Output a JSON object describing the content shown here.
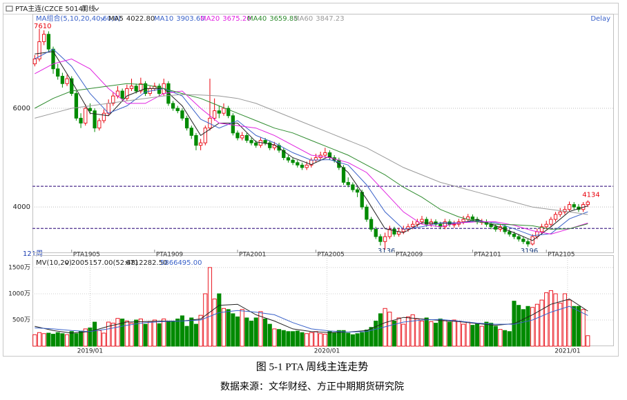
{
  "header": {
    "symbol": "PTA主连(CZCE 5014)",
    "period": "周线"
  },
  "chart_data": {
    "type": "candlestick",
    "indicator_label": "MA组合(5,10,20,40,60,0)",
    "delay": "Delay",
    "bar_count_label": "121周",
    "up_color": "#e8000b",
    "down_color": "#008a00",
    "xlim": [
      -0.5,
      125.5
    ],
    "ylim": [
      3080,
      7915
    ],
    "yticks": [
      4000,
      6000
    ],
    "grid": true,
    "open": [
      6900,
      7000,
      7350,
      7500,
      7200,
      6800,
      6650,
      6500,
      6600,
      6300,
      5800,
      5700,
      6000,
      5950,
      5600,
      5750,
      5900,
      6100,
      6250,
      6350,
      6200,
      6400,
      6450,
      6350,
      6500,
      6300,
      6400,
      6450,
      6300,
      6500,
      6100,
      6000,
      5950,
      5800,
      5600,
      5450,
      5250,
      5300,
      5600,
      5800,
      5950,
      5900,
      6000,
      5850,
      5500,
      5400,
      5450,
      5350,
      5300,
      5250,
      5350,
      5300,
      5200,
      5250,
      5150,
      5000,
      4950,
      4900,
      4850,
      4800,
      4850,
      4950,
      5000,
      5050,
      5100,
      5000,
      4950,
      4800,
      4500,
      4450,
      4350,
      4300,
      4000,
      3750,
      3550,
      3400,
      3300,
      3400,
      3550,
      3450,
      3500,
      3550,
      3600,
      3650,
      3700,
      3750,
      3650,
      3700,
      3650,
      3600,
      3700,
      3650,
      3650,
      3700,
      3750,
      3800,
      3750,
      3700,
      3700,
      3650,
      3600,
      3550,
      3600,
      3500,
      3450,
      3400,
      3350,
      3300,
      3250,
      3400,
      3500,
      3600,
      3650,
      3750,
      3850,
      3900,
      3950,
      4050,
      4000,
      3950,
      4050
    ],
    "high": [
      7080,
      7610,
      7580,
      7560,
      7250,
      6900,
      6720,
      6680,
      6650,
      6350,
      5900,
      6080,
      6100,
      6000,
      5800,
      5980,
      6180,
      6320,
      6450,
      6400,
      6480,
      6600,
      6500,
      6620,
      6550,
      6450,
      6520,
      6500,
      6600,
      6550,
      6150,
      6050,
      6000,
      5850,
      5650,
      5500,
      5380,
      5650,
      6600,
      6200,
      6050,
      6100,
      6050,
      5900,
      5550,
      5520,
      5500,
      5400,
      5350,
      5420,
      5400,
      5350,
      5320,
      5300,
      5200,
      5050,
      5000,
      4950,
      4900,
      4920,
      5000,
      5080,
      5120,
      5200,
      5150,
      5050,
      5000,
      4850,
      4600,
      4500,
      4400,
      4350,
      4050,
      3800,
      3600,
      3450,
      3480,
      3620,
      3600,
      3580,
      3620,
      3660,
      3720,
      3760,
      3820,
      3800,
      3760,
      3750,
      3700,
      3760,
      3750,
      3720,
      3760,
      3820,
      3860,
      3850,
      3800,
      3760,
      3750,
      3700,
      3650,
      3660,
      3650,
      3550,
      3500,
      3450,
      3400,
      3350,
      3450,
      3560,
      3660,
      3720,
      3800,
      3900,
      3980,
      4020,
      4110,
      4100,
      4060,
      4100,
      4134
    ],
    "low": [
      6850,
      6950,
      7280,
      7150,
      6700,
      6580,
      6420,
      6450,
      6250,
      5750,
      5600,
      5650,
      5880,
      5520,
      5550,
      5700,
      5850,
      6050,
      6200,
      6150,
      6150,
      6350,
      6300,
      6300,
      6250,
      6250,
      6350,
      6250,
      6250,
      6050,
      5950,
      5900,
      5750,
      5550,
      5380,
      5150,
      5150,
      5250,
      5550,
      5750,
      5800,
      5850,
      5800,
      5450,
      5350,
      5350,
      5300,
      5250,
      5200,
      5200,
      5250,
      5150,
      5150,
      5100,
      4950,
      4900,
      4850,
      4800,
      4750,
      4750,
      4800,
      4900,
      4950,
      5000,
      4950,
      4900,
      4750,
      4450,
      4400,
      4300,
      4200,
      3950,
      3700,
      3500,
      3350,
      3220,
      3136,
      3350,
      3400,
      3400,
      3450,
      3500,
      3550,
      3600,
      3650,
      3600,
      3600,
      3600,
      3550,
      3550,
      3600,
      3580,
      3600,
      3650,
      3700,
      3700,
      3650,
      3640,
      3600,
      3550,
      3500,
      3500,
      3450,
      3400,
      3350,
      3300,
      3250,
      3196,
      3220,
      3350,
      3450,
      3550,
      3600,
      3700,
      3800,
      3850,
      3900,
      3950,
      3900,
      3900,
      4000
    ],
    "close": [
      7000,
      7350,
      7500,
      7200,
      6800,
      6650,
      6500,
      6600,
      6300,
      5800,
      5700,
      6000,
      5950,
      5600,
      5750,
      5900,
      6100,
      6250,
      6350,
      6200,
      6400,
      6450,
      6350,
      6500,
      6300,
      6400,
      6450,
      6300,
      6500,
      6100,
      6000,
      5950,
      5800,
      5600,
      5450,
      5250,
      5300,
      5600,
      5800,
      5950,
      5900,
      6000,
      5850,
      5500,
      5400,
      5450,
      5350,
      5300,
      5250,
      5350,
      5300,
      5200,
      5250,
      5150,
      5000,
      4950,
      4900,
      4850,
      4800,
      4850,
      4950,
      5000,
      5050,
      5100,
      5000,
      4950,
      4800,
      4500,
      4450,
      4350,
      4300,
      4000,
      3750,
      3550,
      3400,
      3300,
      3400,
      3550,
      3450,
      3500,
      3550,
      3600,
      3650,
      3700,
      3750,
      3650,
      3700,
      3650,
      3600,
      3700,
      3650,
      3650,
      3700,
      3750,
      3800,
      3750,
      3700,
      3700,
      3650,
      3600,
      3550,
      3600,
      3500,
      3450,
      3400,
      3350,
      3300,
      3250,
      3400,
      3500,
      3600,
      3650,
      3750,
      3850,
      3900,
      3950,
      4050,
      4000,
      3950,
      4050,
      4100
    ],
    "ma_x": [
      0,
      4,
      8,
      12,
      16,
      20,
      24,
      28,
      32,
      36,
      40,
      44,
      48,
      52,
      56,
      60,
      64,
      68,
      72,
      76,
      80,
      84,
      88,
      92,
      96,
      100,
      104,
      108,
      112,
      116,
      120
    ],
    "series": [
      {
        "name": "MA5",
        "label": "4022.80",
        "color": "#222222",
        "values": [
          7100,
          7150,
          6550,
          5900,
          5850,
          6250,
          6400,
          6400,
          6050,
          5450,
          5700,
          5700,
          5320,
          5260,
          5000,
          4860,
          5030,
          4700,
          4160,
          3560,
          3480,
          3680,
          3670,
          3670,
          3750,
          3620,
          3480,
          3320,
          3600,
          3910,
          4022.8
        ]
      },
      {
        "name": "MA10",
        "label": "3903.60",
        "color": "#3a62c9",
        "values": [
          7000,
          7200,
          6850,
          6300,
          5900,
          6050,
          6330,
          6400,
          6250,
          5780,
          5600,
          5750,
          5450,
          5300,
          5100,
          4950,
          4960,
          4850,
          4450,
          3900,
          3550,
          3600,
          3680,
          3680,
          3720,
          3680,
          3560,
          3420,
          3460,
          3760,
          3903.6
        ]
      },
      {
        "name": "MA20",
        "label": "3675.20",
        "color": "#e020e0",
        "values": [
          6700,
          6900,
          7000,
          6800,
          6400,
          6100,
          6100,
          6300,
          6350,
          6000,
          5700,
          5650,
          5600,
          5450,
          5250,
          5050,
          5000,
          4900,
          4700,
          4300,
          3900,
          3650,
          3600,
          3680,
          3700,
          3700,
          3630,
          3520,
          3450,
          3560,
          3675.2
        ]
      },
      {
        "name": "MA40",
        "label": "3659.85",
        "color": "#2e8b2e",
        "values": [
          6000,
          6200,
          6350,
          6400,
          6450,
          6500,
          6480,
          6400,
          6300,
          6200,
          6050,
          5900,
          5750,
          5600,
          5500,
          5350,
          5200,
          5050,
          4850,
          4650,
          4400,
          4200,
          3950,
          3800,
          3700,
          3650,
          3640,
          3620,
          3550,
          3560,
          3659.85
        ]
      },
      {
        "name": "MA60",
        "label": "3847.23",
        "color": "#999999",
        "values": [
          5800,
          5900,
          6000,
          6050,
          6100,
          6150,
          6200,
          6250,
          6280,
          6270,
          6250,
          6200,
          6100,
          5950,
          5800,
          5650,
          5500,
          5350,
          5200,
          5000,
          4800,
          4650,
          4500,
          4400,
          4300,
          4200,
          4100,
          4000,
          3950,
          3900,
          3847.23
        ]
      }
    ],
    "levels": {
      "color": "#4b2c8c",
      "values": [
        4420,
        3566
      ]
    },
    "contracts": {
      "labels": [
        "PTA1905",
        "PTA1909",
        "PTA2001",
        "PTA2005",
        "PTA2009",
        "PTA2101",
        "PTA2105"
      ],
      "x": [
        8,
        26,
        44,
        61,
        78,
        95,
        111
      ]
    },
    "xticks": [
      {
        "value": 12,
        "label": "2019/01"
      },
      {
        "value": 63.4,
        "label": "2020/01"
      },
      {
        "value": 115.6,
        "label": "2021/01"
      }
    ],
    "volume": {
      "label": "MV(10,20)",
      "current_label": "2005157.00(52:48)",
      "values": [
        220,
        260,
        240,
        250,
        230,
        260,
        240,
        220,
        280,
        240,
        290,
        330,
        350,
        460,
        300,
        250,
        460,
        440,
        530,
        520,
        480,
        440,
        500,
        520,
        420,
        470,
        500,
        430,
        520,
        480,
        470,
        520,
        580,
        380,
        540,
        420,
        590,
        1000,
        1500,
        900,
        1000,
        720,
        700,
        620,
        560,
        700,
        540,
        480,
        540,
        660,
        520,
        420,
        330,
        320,
        300,
        280,
        280,
        290,
        260,
        240,
        260,
        280,
        240,
        230,
        280,
        260,
        300,
        300,
        250,
        220,
        240,
        260,
        310,
        360,
        480,
        620,
        720,
        650,
        480,
        540,
        420,
        560,
        600,
        520,
        480,
        540,
        470,
        440,
        520,
        500,
        460,
        500,
        480,
        420,
        460,
        400,
        420,
        380,
        460,
        440,
        380,
        320,
        300,
        280,
        860,
        780,
        700,
        760,
        740,
        800,
        880,
        1020,
        1060,
        1000,
        820,
        1000,
        880,
        760,
        760,
        700,
        200.5157
      ],
      "ylim": [
        0,
        1670
      ],
      "yticks": [
        {
          "value": 500,
          "label": "500万"
        },
        {
          "value": 1000,
          "label": "1000万"
        },
        {
          "value": 1500,
          "label": "1500万"
        }
      ],
      "series": [
        {
          "label": "6712282.50",
          "color": "#222222",
          "values": [
            380,
            300,
            250,
            280,
            380,
            460,
            470,
            480,
            480,
            520,
            780,
            800,
            600,
            480,
            330,
            280,
            260,
            270,
            300,
            450,
            550,
            520,
            490,
            470,
            430,
            400,
            430,
            600,
            800,
            900,
            671.22825
          ]
        },
        {
          "label": "5866495.00",
          "color": "#3a62c9",
          "values": [
            350,
            330,
            300,
            280,
            330,
            400,
            450,
            470,
            480,
            500,
            640,
            680,
            650,
            600,
            450,
            330,
            290,
            270,
            280,
            370,
            460,
            500,
            510,
            480,
            440,
            420,
            420,
            500,
            650,
            760,
            586.6495
          ]
        }
      ]
    }
  },
  "caption": {
    "title": "图 5-1 PTA 周线主连走势",
    "source": "数据来源：文华财经、方正中期期货研究院"
  }
}
